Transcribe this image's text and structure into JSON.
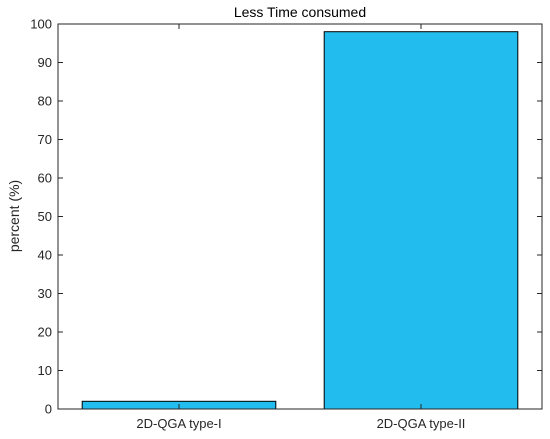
{
  "chart_data": {
    "type": "bar",
    "title": "Less Time consumed",
    "xlabel": "",
    "ylabel": "percent (%)",
    "categories": [
      "2D-QGA type-I",
      "2D-QGA type-II"
    ],
    "values": [
      2,
      98
    ],
    "ylim": [
      0,
      100
    ],
    "yticks": [
      0,
      10,
      20,
      30,
      40,
      50,
      60,
      70,
      80,
      90,
      100
    ],
    "grid": false,
    "bar_color": "#22BDEE",
    "edge_color": "#000000"
  }
}
